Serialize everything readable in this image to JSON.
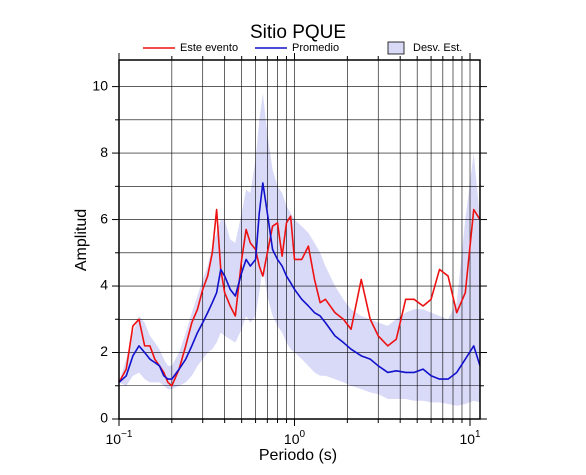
{
  "chart_data": {
    "type": "line",
    "title": "Sitio PQUE",
    "x_label": "Periodo (s)",
    "y_label": "Amplitud",
    "xscale": "log",
    "grid": true,
    "xlim": [
      0.1,
      11.4
    ],
    "ylim": [
      0,
      10.8
    ],
    "xticks": [
      {
        "value": 0.1,
        "label": "10",
        "exponent": "−1"
      },
      {
        "value": 1,
        "label": "10",
        "exponent": "0"
      },
      {
        "value": 10,
        "label": "10",
        "exponent": "1"
      }
    ],
    "xminor": [
      0.2,
      0.3,
      0.4,
      0.5,
      0.6,
      0.7,
      0.8,
      0.9,
      2,
      3,
      4,
      5,
      6,
      7,
      8,
      9
    ],
    "yticks": [
      0,
      2,
      4,
      6,
      8,
      10
    ],
    "yminor": [
      1,
      3,
      5,
      7,
      9
    ],
    "x": [
      0.1,
      0.11,
      0.12,
      0.13,
      0.14,
      0.15,
      0.16,
      0.17,
      0.18,
      0.19,
      0.2,
      0.22,
      0.24,
      0.26,
      0.28,
      0.3,
      0.32,
      0.34,
      0.36,
      0.38,
      0.4,
      0.43,
      0.46,
      0.5,
      0.53,
      0.56,
      0.6,
      0.63,
      0.66,
      0.7,
      0.75,
      0.8,
      0.85,
      0.9,
      0.95,
      1.0,
      1.1,
      1.2,
      1.3,
      1.4,
      1.5,
      1.7,
      1.9,
      2.1,
      2.4,
      2.7,
      3.0,
      3.4,
      3.8,
      4.3,
      4.8,
      5.4,
      6.0,
      6.7,
      7.5,
      8.4,
      9.4,
      10.5,
      11.4
    ],
    "series": [
      {
        "name": "Este evento",
        "color": "#ee1111",
        "values": [
          1.1,
          1.5,
          2.8,
          3.0,
          2.2,
          2.2,
          1.8,
          1.6,
          1.4,
          1.1,
          1.0,
          1.5,
          2.2,
          2.9,
          3.3,
          3.9,
          4.3,
          5.0,
          6.3,
          4.5,
          3.8,
          3.4,
          3.1,
          4.8,
          5.7,
          5.3,
          5.1,
          4.6,
          4.3,
          5.0,
          5.8,
          5.9,
          4.9,
          5.9,
          6.1,
          4.8,
          4.8,
          5.2,
          4.2,
          3.5,
          3.6,
          3.2,
          3.0,
          2.7,
          4.2,
          3.0,
          2.5,
          2.2,
          2.4,
          3.6,
          3.6,
          3.4,
          3.6,
          4.5,
          4.3,
          3.2,
          3.8,
          6.3,
          6.0
        ]
      },
      {
        "name": "Promedio",
        "color": "#1111cc",
        "values": [
          1.1,
          1.3,
          1.9,
          2.2,
          2.0,
          1.8,
          1.7,
          1.6,
          1.3,
          1.2,
          1.2,
          1.5,
          1.8,
          2.2,
          2.6,
          2.9,
          3.2,
          3.5,
          3.8,
          4.5,
          4.3,
          3.9,
          3.7,
          4.4,
          4.8,
          4.6,
          4.8,
          6.2,
          7.1,
          6.2,
          5.1,
          4.8,
          4.6,
          4.3,
          4.1,
          3.9,
          3.6,
          3.4,
          3.2,
          3.1,
          2.9,
          2.5,
          2.3,
          2.1,
          1.9,
          1.8,
          1.6,
          1.4,
          1.45,
          1.4,
          1.4,
          1.5,
          1.3,
          1.2,
          1.2,
          1.4,
          1.8,
          2.2,
          1.6
        ]
      },
      {
        "name": "Desv. Est.",
        "color": "#d9d9f8",
        "upper": [
          1.1,
          1.8,
          2.6,
          3.1,
          2.9,
          2.5,
          2.3,
          2.1,
          1.8,
          1.6,
          1.6,
          2.0,
          2.6,
          3.2,
          3.7,
          4.2,
          4.6,
          5.2,
          5.6,
          6.0,
          6.0,
          5.4,
          5.3,
          6.2,
          6.9,
          6.8,
          7.8,
          9.0,
          9.8,
          8.6,
          7.5,
          7.0,
          6.8,
          6.4,
          6.2,
          6.0,
          5.8,
          5.6,
          5.3,
          5.0,
          4.6,
          4.0,
          3.6,
          3.3,
          3.1,
          3.0,
          2.9,
          2.8,
          3.0,
          3.2,
          3.3,
          3.3,
          3.2,
          3.1,
          3.0,
          3.5,
          6.0,
          8.0,
          6.0
        ],
        "lower": [
          1.1,
          1.0,
          1.3,
          1.4,
          1.2,
          1.1,
          1.1,
          1.1,
          1.0,
          0.9,
          0.9,
          1.0,
          1.1,
          1.3,
          1.6,
          1.8,
          2.0,
          2.1,
          2.3,
          2.6,
          2.5,
          2.4,
          2.3,
          2.7,
          3.1,
          2.9,
          3.1,
          3.8,
          4.6,
          3.7,
          3.1,
          2.8,
          2.6,
          2.3,
          2.1,
          2.0,
          1.8,
          1.6,
          1.4,
          1.3,
          1.3,
          1.2,
          1.1,
          1.0,
          0.9,
          0.8,
          0.75,
          0.6,
          0.6,
          0.6,
          0.55,
          0.55,
          0.5,
          0.5,
          0.45,
          0.4,
          0.45,
          0.55,
          0.5
        ]
      }
    ]
  }
}
